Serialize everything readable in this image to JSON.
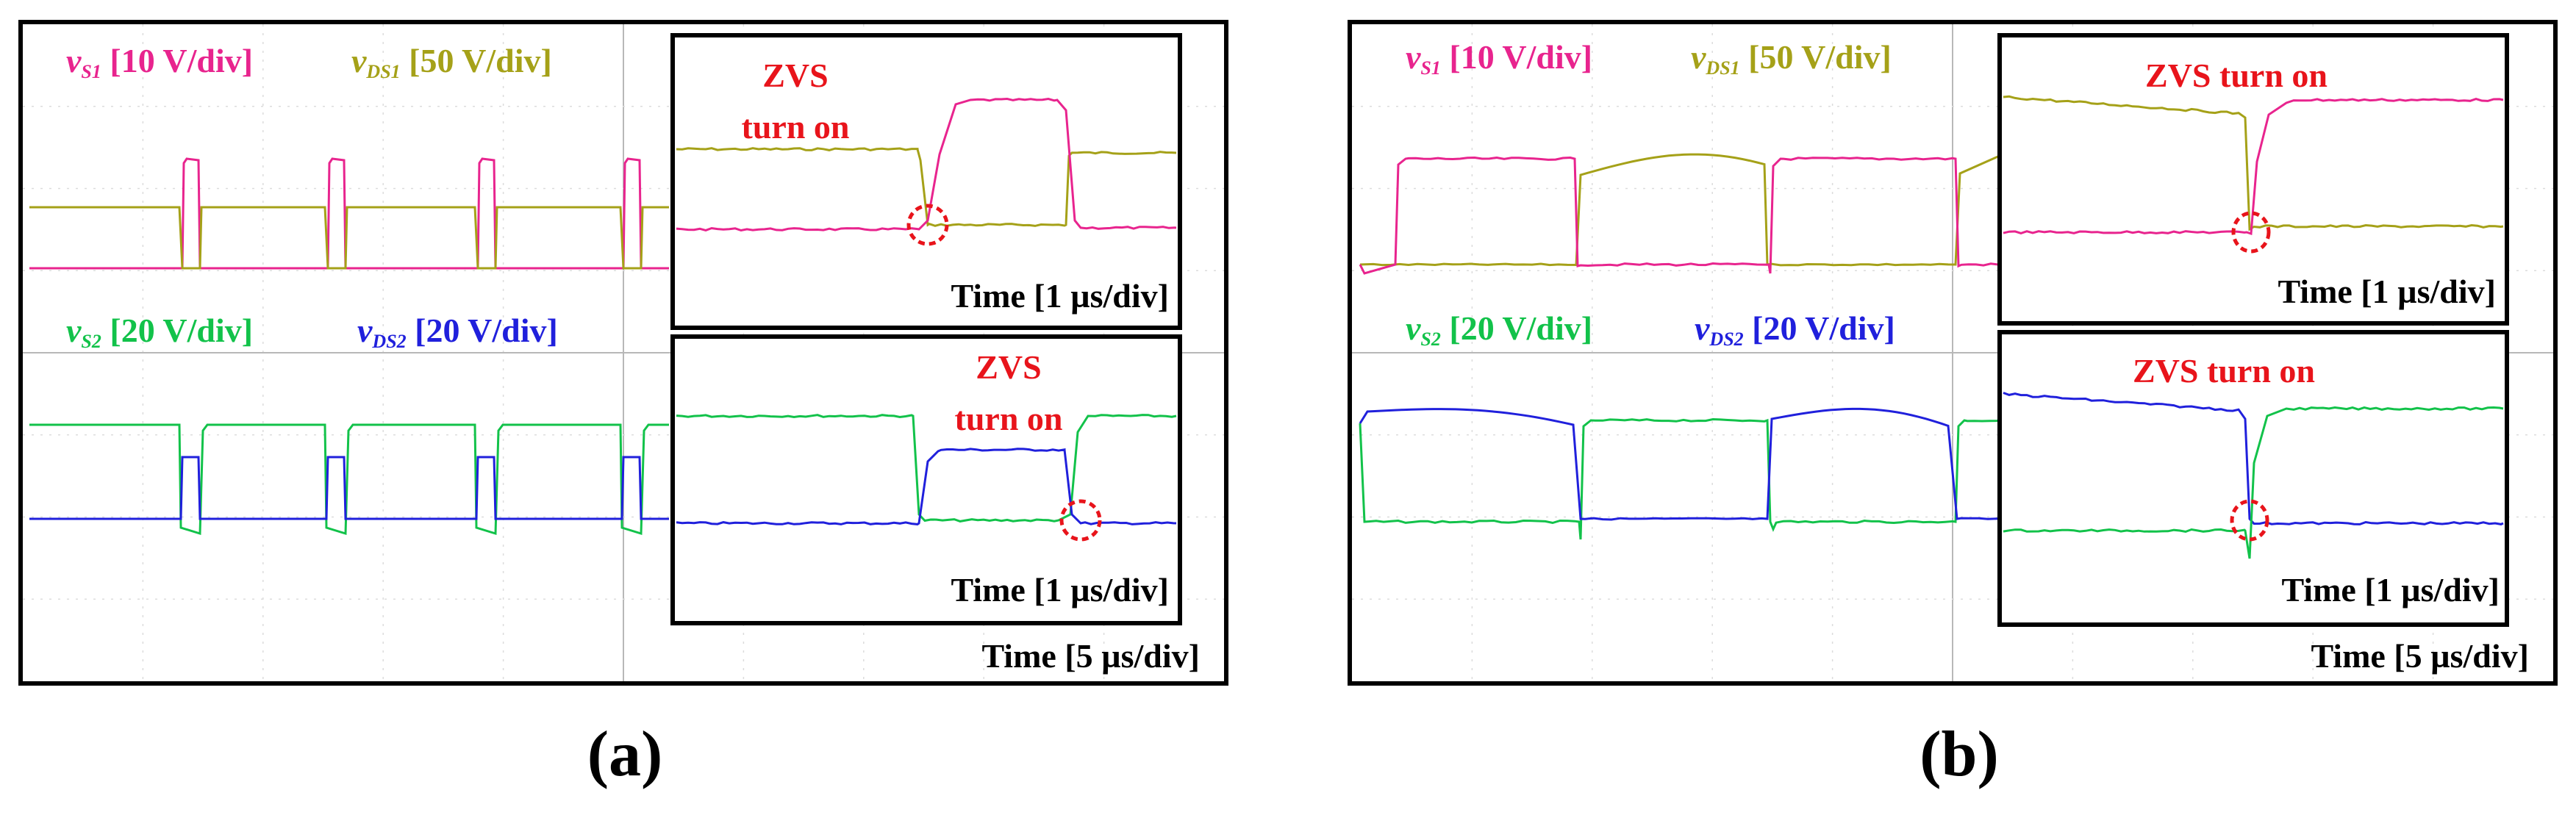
{
  "figure": {
    "panels": [
      {
        "caption": "(a)",
        "time_main": "Time [5 µs/div]",
        "legend_top": [
          {
            "sym": "v",
            "sub": "S1",
            "text": " [10 V/div]",
            "color": "#e8248e"
          },
          {
            "sym": "v",
            "sub": "DS1",
            "text": " [50 V/div]",
            "color": "#a5a118"
          }
        ],
        "legend_bottom": [
          {
            "sym": "v",
            "sub": "S2",
            "text": " [20 V/div]",
            "color": "#12c24a"
          },
          {
            "sym": "v",
            "sub": "DS2",
            "text": " [20 V/div]",
            "color": "#2020dc"
          }
        ],
        "inset_top": {
          "annotation_lines": [
            "ZVS",
            "turn on"
          ],
          "time": "Time [1 µs/div]"
        },
        "inset_bottom": {
          "annotation_lines": [
            "ZVS",
            "turn on"
          ],
          "time": "Time [1 µs/div]"
        }
      },
      {
        "caption": "(b)",
        "time_main": "Time [5 µs/div]",
        "legend_top": [
          {
            "sym": "v",
            "sub": "S1",
            "text": " [10 V/div]",
            "color": "#e8248e"
          },
          {
            "sym": "v",
            "sub": "DS1",
            "text": " [50 V/div]",
            "color": "#a5a118"
          }
        ],
        "legend_bottom": [
          {
            "sym": "v",
            "sub": "S2",
            "text": " [20 V/div]",
            "color": "#12c24a"
          },
          {
            "sym": "v",
            "sub": "DS2",
            "text": " [20 V/div]",
            "color": "#2020dc"
          }
        ],
        "inset_top": {
          "annotation_lines": [
            "ZVS turn on"
          ],
          "time": "Time [1 µs/div]"
        },
        "inset_bottom": {
          "annotation_lines": [
            "ZVS turn on"
          ],
          "time": "Time [1 µs/div]"
        }
      }
    ]
  },
  "chart_data": [
    {
      "type": "line",
      "panel": "(a)",
      "view": "main",
      "x_axis": "Time [5 µs/div]",
      "grid": true,
      "series": [
        {
          "name": "vS1",
          "scale": "10 V/div",
          "color": "#e8248e",
          "levels_div": {
            "low": 0.0,
            "high": 1.65
          },
          "pulses": 4,
          "duty_approx": 0.07
        },
        {
          "name": "vDS1",
          "scale": "50 V/div",
          "color": "#a5a118",
          "levels_div": {
            "low": 0.0,
            "high": 0.9
          },
          "notches": 4
        },
        {
          "name": "vS2",
          "scale": "20 V/div",
          "color": "#12c24a",
          "levels_div": {
            "low": -0.25,
            "high": 1.3
          },
          "notches": 4
        },
        {
          "name": "vDS2",
          "scale": "20 V/div",
          "color": "#2020dc",
          "levels_div": {
            "low": 0.0,
            "high": 0.9
          },
          "pulses": 4
        }
      ]
    },
    {
      "type": "line",
      "panel": "(a)",
      "view": "inset-top",
      "x_axis": "Time [1 µs/div]",
      "series": [
        {
          "name": "vS1",
          "color": "#e8248e",
          "rise_at_div": 3.8,
          "fall_at_div": 5.6
        },
        {
          "name": "vDS1",
          "color": "#a5a118",
          "fall_at_div": 3.7,
          "rise_at_div": 5.6
        }
      ],
      "annotation": "ZVS turn on"
    },
    {
      "type": "line",
      "panel": "(a)",
      "view": "inset-bottom",
      "x_axis": "Time [1 µs/div]",
      "series": [
        {
          "name": "vS2",
          "color": "#12c24a",
          "fall_at_div": 3.8,
          "rise_at_div": 5.7
        },
        {
          "name": "vDS2",
          "color": "#2020dc",
          "rise_at_div": 3.9,
          "fall_at_div": 5.6
        }
      ],
      "annotation": "ZVS turn on"
    },
    {
      "type": "line",
      "panel": "(b)",
      "view": "main",
      "x_axis": "Time [5 µs/div]",
      "grid": true,
      "series": [
        {
          "name": "vS1",
          "scale": "10 V/div",
          "color": "#e8248e",
          "levels_div": {
            "low": 0.0,
            "high": 1.65
          },
          "pulses": 2,
          "duty_approx": 0.45
        },
        {
          "name": "vDS1",
          "scale": "50 V/div",
          "color": "#a5a118",
          "levels_div": {
            "low": 0.0,
            "high": 1.6
          }
        },
        {
          "name": "vS2",
          "scale": "20 V/div",
          "color": "#12c24a",
          "levels_div": {
            "low": 0.0,
            "high": 1.35
          }
        },
        {
          "name": "vDS2",
          "scale": "20 V/div",
          "color": "#2020dc",
          "levels_div": {
            "low": 0.0,
            "high": 1.55
          }
        }
      ]
    },
    {
      "type": "line",
      "panel": "(b)",
      "view": "inset-top",
      "x_axis": "Time [1 µs/div]",
      "series": [
        {
          "name": "vS1",
          "color": "#e8248e",
          "rise_at_div": 4.7
        },
        {
          "name": "vDS1",
          "color": "#a5a118",
          "fall_at_div": 4.6
        }
      ],
      "annotation": "ZVS turn on"
    },
    {
      "type": "line",
      "panel": "(b)",
      "view": "inset-bottom",
      "x_axis": "Time [1 µs/div]",
      "series": [
        {
          "name": "vS2",
          "color": "#12c24a",
          "rise_at_div": 4.7
        },
        {
          "name": "vDS2",
          "color": "#2020dc",
          "fall_at_div": 4.6
        }
      ],
      "annotation": "ZVS turn on"
    }
  ]
}
